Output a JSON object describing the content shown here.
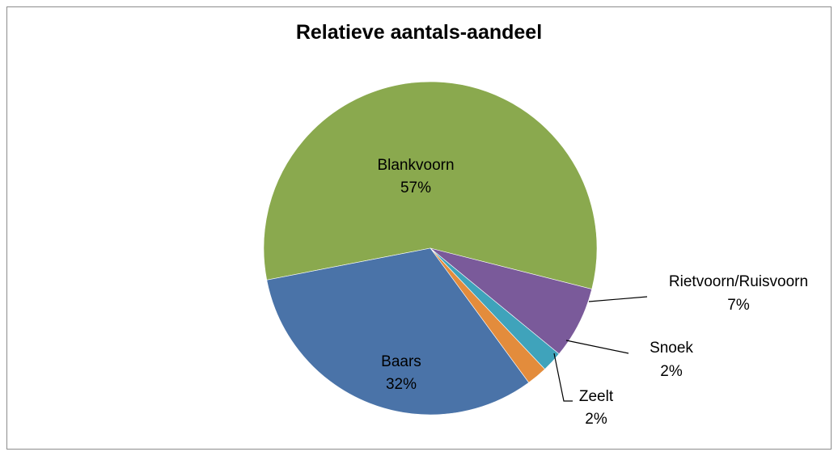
{
  "chart_data": {
    "type": "pie",
    "title": "Relatieve aantals-aandeel",
    "slices": [
      {
        "label": "Blankvoorn",
        "value": 57,
        "value_label": "57%",
        "color": "#8aa94e"
      },
      {
        "label": "Rietvoorn/Ruisvoorn",
        "value": 7,
        "value_label": "7%",
        "color": "#7a5a9a"
      },
      {
        "label": "Snoek",
        "value": 2,
        "value_label": "2%",
        "color": "#3fa3bb"
      },
      {
        "label": "Zeelt",
        "value": 2,
        "value_label": "2%",
        "color": "#e38c3c"
      },
      {
        "label": "Baars",
        "value": 32,
        "value_label": "32%",
        "color": "#4a73a8"
      }
    ],
    "legend": "none"
  }
}
